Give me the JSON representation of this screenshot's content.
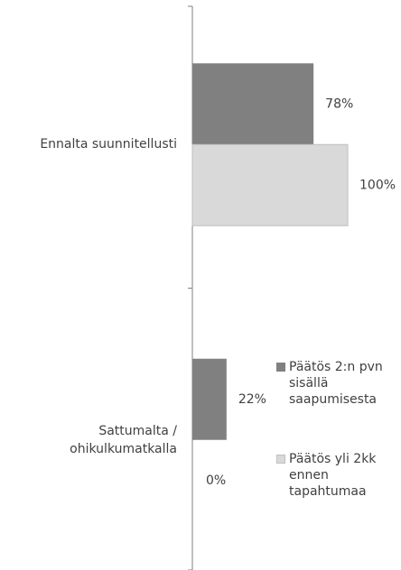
{
  "chart_data": {
    "type": "hbar",
    "categories": [
      "Ennalta suunnitellusti",
      "Sattumalta / ohikulkumatkalla"
    ],
    "series": [
      {
        "name": "Päätös 2:n pvn sisällä saapumisesta",
        "color": "#808080",
        "values": [
          78,
          22
        ],
        "value_labels": [
          "78%",
          "22%"
        ]
      },
      {
        "name": "Päätös yli 2kk ennen tapahtumaa",
        "color": "#d9d9d9",
        "values": [
          100,
          0
        ],
        "value_labels": [
          "100%",
          "0%"
        ]
      }
    ]
  }
}
